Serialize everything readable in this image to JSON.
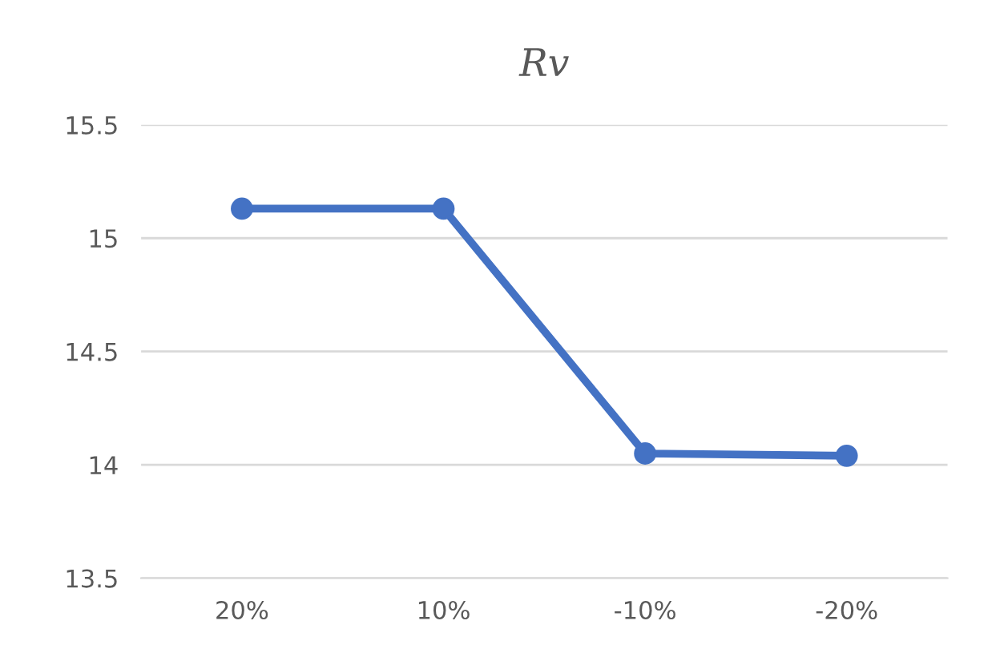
{
  "chart_data": {
    "type": "line",
    "title": "Rv",
    "categories": [
      "20%",
      "10%",
      "-10%",
      "-20%"
    ],
    "series": [
      {
        "color": "#4472c4",
        "values": [
          15.13,
          15.13,
          14.05,
          14.04
        ]
      }
    ],
    "ylim": [
      13.5,
      15.5
    ],
    "yticks": [
      13.5,
      14,
      14.5,
      15,
      15.5
    ],
    "grid": "y",
    "marker": "circle",
    "line_style": "solid"
  }
}
